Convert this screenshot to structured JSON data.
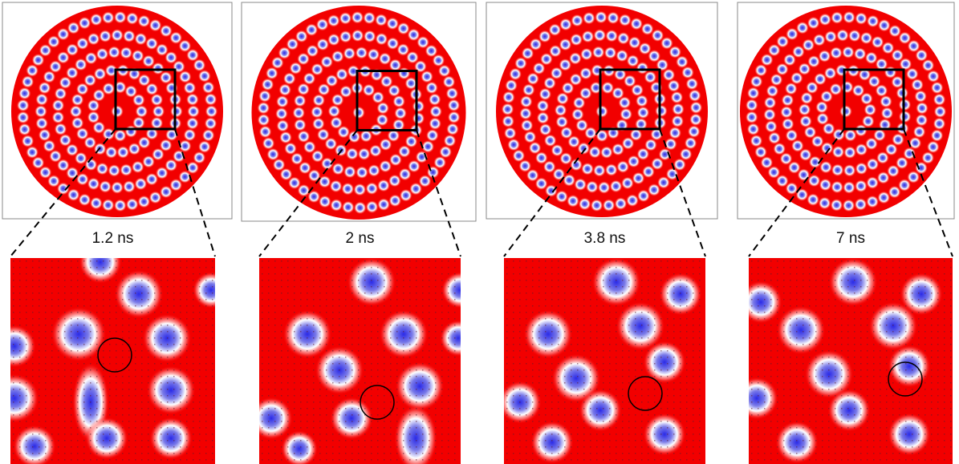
{
  "panels": [
    {
      "label": "1.2 ns"
    },
    {
      "label": "2 ns"
    },
    {
      "label": "3.8 ns"
    },
    {
      "label": "7 ns"
    }
  ]
}
